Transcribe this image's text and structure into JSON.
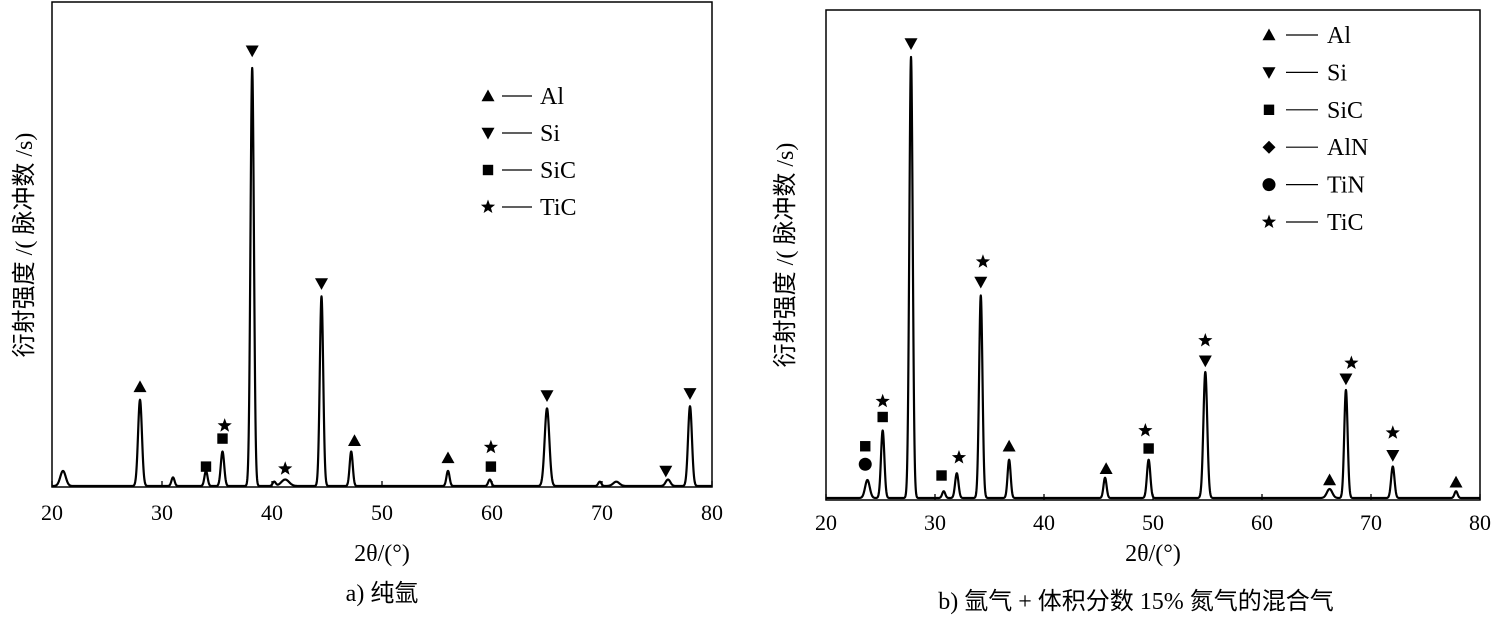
{
  "figure": {
    "panels": [
      {
        "caption": "a) 纯氩",
        "ylabel": "衍射强度 /( 脉冲数 /s)",
        "xlabel": "2θ/(°)",
        "xticks": [
          "20",
          "30",
          "40",
          "50",
          "60",
          "70",
          "80"
        ],
        "legend": [
          {
            "symbol": "triangle-up",
            "label": "Al"
          },
          {
            "symbol": "triangle-down",
            "label": "Si"
          },
          {
            "symbol": "square",
            "label": "SiC"
          },
          {
            "symbol": "star",
            "label": "TiC"
          }
        ]
      },
      {
        "caption": "b) 氩气 + 体积分数 15% 氮气的混合气",
        "ylabel": "衍射强度 /( 脉冲数 /s)",
        "xlabel": "2θ/(°)",
        "xticks": [
          "20",
          "30",
          "40",
          "50",
          "60",
          "70",
          "80"
        ],
        "legend": [
          {
            "symbol": "triangle-up",
            "label": "Al"
          },
          {
            "symbol": "triangle-down",
            "label": "Si"
          },
          {
            "symbol": "square",
            "label": "SiC"
          },
          {
            "symbol": "diamond",
            "label": "AlN"
          },
          {
            "symbol": "circle",
            "label": "TiN"
          },
          {
            "symbol": "star",
            "label": "TiC"
          }
        ]
      }
    ]
  },
  "chart_data": [
    {
      "type": "line",
      "title": "a) 纯氩",
      "xlabel": "2θ/(°)",
      "ylabel": "衍射强度 /( 脉冲数 /s)",
      "xlim": [
        20,
        80
      ],
      "ylim": [
        0,
        100
      ],
      "y_ticks_shown": false,
      "line_color": "#000000",
      "peaks": [
        {
          "x": 21.0,
          "y": 3.5,
          "w": 0.35
        },
        {
          "x": 28.0,
          "y": 20.0,
          "w": 0.25
        },
        {
          "x": 31.0,
          "y": 2.0,
          "w": 0.2
        },
        {
          "x": 34.0,
          "y": 3.5,
          "w": 0.2
        },
        {
          "x": 35.5,
          "y": 8.0,
          "w": 0.22
        },
        {
          "x": 38.2,
          "y": 97.0,
          "w": 0.22
        },
        {
          "x": 40.2,
          "y": 1.0,
          "w": 0.2
        },
        {
          "x": 41.2,
          "y": 1.5,
          "w": 0.5
        },
        {
          "x": 44.5,
          "y": 44.0,
          "w": 0.22
        },
        {
          "x": 47.2,
          "y": 8.0,
          "w": 0.2
        },
        {
          "x": 56.0,
          "y": 3.5,
          "w": 0.2
        },
        {
          "x": 59.8,
          "y": 1.5,
          "w": 0.2
        },
        {
          "x": 65.0,
          "y": 18.0,
          "w": 0.3
        },
        {
          "x": 69.8,
          "y": 1.0,
          "w": 0.2
        },
        {
          "x": 71.3,
          "y": 1.0,
          "w": 0.4
        },
        {
          "x": 76.0,
          "y": 1.5,
          "w": 0.3
        },
        {
          "x": 78.0,
          "y": 18.5,
          "w": 0.25
        }
      ],
      "markers": [
        {
          "symbol": "triangle-up",
          "x": 28.0,
          "y": 23.0
        },
        {
          "symbol": "square",
          "x": 34.0,
          "y": 4.5
        },
        {
          "symbol": "star",
          "x": 35.7,
          "y": 14.0
        },
        {
          "symbol": "square",
          "x": 35.5,
          "y": 11.0
        },
        {
          "symbol": "triangle-down",
          "x": 38.2,
          "y": 101.0
        },
        {
          "symbol": "star",
          "x": 41.2,
          "y": 4.0
        },
        {
          "symbol": "triangle-down",
          "x": 44.5,
          "y": 47.0
        },
        {
          "symbol": "triangle-up",
          "x": 47.5,
          "y": 10.5
        },
        {
          "symbol": "triangle-up",
          "x": 56.0,
          "y": 6.5
        },
        {
          "symbol": "star",
          "x": 59.9,
          "y": 9.0
        },
        {
          "symbol": "square",
          "x": 59.9,
          "y": 4.5
        },
        {
          "symbol": "triangle-down",
          "x": 65.0,
          "y": 21.0
        },
        {
          "symbol": "triangle-down",
          "x": 75.8,
          "y": 3.5
        },
        {
          "symbol": "triangle-down",
          "x": 78.0,
          "y": 21.5
        }
      ]
    },
    {
      "type": "line",
      "title": "b) 氩气 + 体积分数 15% 氮气的混合气",
      "xlabel": "2θ/(°)",
      "ylabel": "衍射强度 /( 脉冲数 /s)",
      "xlim": [
        20,
        80
      ],
      "ylim": [
        0,
        100
      ],
      "y_ticks_shown": false,
      "line_color": "#000000",
      "peaks": [
        {
          "x": 23.8,
          "y": 4.0,
          "w": 0.3
        },
        {
          "x": 25.2,
          "y": 15.0,
          "w": 0.22
        },
        {
          "x": 27.8,
          "y": 98.0,
          "w": 0.22
        },
        {
          "x": 30.8,
          "y": 1.5,
          "w": 0.2
        },
        {
          "x": 32.0,
          "y": 5.5,
          "w": 0.22
        },
        {
          "x": 34.2,
          "y": 45.0,
          "w": 0.22
        },
        {
          "x": 36.8,
          "y": 8.5,
          "w": 0.2
        },
        {
          "x": 45.6,
          "y": 4.5,
          "w": 0.2
        },
        {
          "x": 49.6,
          "y": 8.5,
          "w": 0.22
        },
        {
          "x": 54.8,
          "y": 28.0,
          "w": 0.25
        },
        {
          "x": 66.2,
          "y": 2.0,
          "w": 0.35
        },
        {
          "x": 67.7,
          "y": 24.0,
          "w": 0.22
        },
        {
          "x": 72.0,
          "y": 7.0,
          "w": 0.22
        },
        {
          "x": 77.8,
          "y": 1.5,
          "w": 0.2
        }
      ],
      "markers": [
        {
          "symbol": "circle",
          "x": 23.6,
          "y": 7.5
        },
        {
          "symbol": "square",
          "x": 23.6,
          "y": 11.5
        },
        {
          "symbol": "square",
          "x": 25.2,
          "y": 18.0
        },
        {
          "symbol": "star",
          "x": 25.2,
          "y": 21.5
        },
        {
          "symbol": "triangle-down",
          "x": 27.8,
          "y": 101.0
        },
        {
          "symbol": "square",
          "x": 30.6,
          "y": 5.0
        },
        {
          "symbol": "star",
          "x": 32.2,
          "y": 9.0
        },
        {
          "symbol": "triangle-down",
          "x": 34.2,
          "y": 48.0
        },
        {
          "symbol": "star",
          "x": 34.4,
          "y": 52.5
        },
        {
          "symbol": "triangle-up",
          "x": 36.8,
          "y": 11.5
        },
        {
          "symbol": "triangle-up",
          "x": 45.7,
          "y": 6.5
        },
        {
          "symbol": "square",
          "x": 49.6,
          "y": 11.0
        },
        {
          "symbol": "star",
          "x": 49.3,
          "y": 15.0
        },
        {
          "symbol": "triangle-down",
          "x": 54.8,
          "y": 30.5
        },
        {
          "symbol": "star",
          "x": 54.8,
          "y": 35.0
        },
        {
          "symbol": "triangle-up",
          "x": 66.2,
          "y": 4.0
        },
        {
          "symbol": "triangle-down",
          "x": 67.7,
          "y": 26.5
        },
        {
          "symbol": "star",
          "x": 68.2,
          "y": 30.0
        },
        {
          "symbol": "triangle-down",
          "x": 72.0,
          "y": 9.5
        },
        {
          "symbol": "star",
          "x": 72.0,
          "y": 14.5
        },
        {
          "symbol": "triangle-up",
          "x": 77.8,
          "y": 3.5
        }
      ]
    }
  ]
}
